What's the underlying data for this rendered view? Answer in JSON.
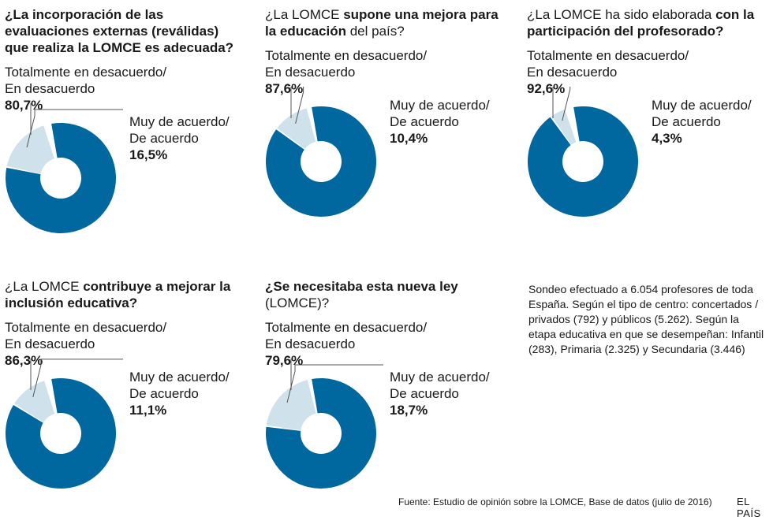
{
  "colors": {
    "disagree": "#00689E",
    "agree": "#CFE2EC",
    "leader": "#555555"
  },
  "legend": {
    "disagree_line1": "Totalmente en desacuerdo/",
    "disagree_line2": "En desacuerdo",
    "agree_line1": "Muy de acuerdo/",
    "agree_line2": "De acuerdo"
  },
  "chart_data": [
    {
      "type": "pie",
      "title_parts": [
        {
          "t": "¿La incorporación de las evaluaciones externas (reválidas) que realiza la LOMCE es adecuada?",
          "b": true
        }
      ],
      "labels": [
        "Totalmente en desacuerdo/ En desacuerdo",
        "Muy de acuerdo/ De acuerdo"
      ],
      "values": [
        80.7,
        16.5
      ],
      "display": [
        "80,7%",
        "16,5%"
      ]
    },
    {
      "type": "pie",
      "title_parts": [
        {
          "t": "¿La LOMCE ",
          "b": false
        },
        {
          "t": "supone una mejora para la educación",
          "b": true
        },
        {
          "t": " del país?",
          "b": false
        }
      ],
      "labels": [
        "Totalmente en desacuerdo/ En desacuerdo",
        "Muy de acuerdo/ De acuerdo"
      ],
      "values": [
        87.6,
        10.4
      ],
      "display": [
        "87,6%",
        "10,4%"
      ]
    },
    {
      "type": "pie",
      "title_parts": [
        {
          "t": "¿La LOMCE ha sido elaborada ",
          "b": false
        },
        {
          "t": "con la participación del profesorado?",
          "b": true
        }
      ],
      "labels": [
        "Totalmente en desacuerdo/ En desacuerdo",
        "Muy de acuerdo/ De acuerdo"
      ],
      "values": [
        92.6,
        4.3
      ],
      "display": [
        "92,6%",
        "4,3%"
      ]
    },
    {
      "type": "pie",
      "title_parts": [
        {
          "t": "¿La LOMCE ",
          "b": false
        },
        {
          "t": "contribuye a mejorar la inclusión educativa?",
          "b": true
        }
      ],
      "labels": [
        "Totalmente en desacuerdo/ En desacuerdo",
        "Muy de acuerdo/ De acuerdo"
      ],
      "values": [
        86.3,
        11.1
      ],
      "display": [
        "86,3%",
        "11,1%"
      ]
    },
    {
      "type": "pie",
      "title_parts": [
        {
          "t": "¿Se necesitaba esta nueva ley",
          "b": true
        },
        {
          "t": " (LOMCE)?",
          "b": false
        }
      ],
      "labels": [
        "Totalmente en desacuerdo/ En desacuerdo",
        "Muy de acuerdo/ De acuerdo"
      ],
      "values": [
        79.6,
        18.7
      ],
      "display": [
        "79,6%",
        "18,7%"
      ]
    }
  ],
  "note": "Sondeo efectuado a 6.054 profesores de toda España. Según el tipo de centro: concertados / privados (792) y públicos (5.262). Según la etapa educativa en que se desempeñan: Infantil (283), Primaria (2.325) y Secundaria (3.446)",
  "footer": {
    "source": "Fuente: Estudio de opinión sobre la LOMCE, Base de datos (julio de 2016)",
    "brand": "EL PAÍS"
  }
}
